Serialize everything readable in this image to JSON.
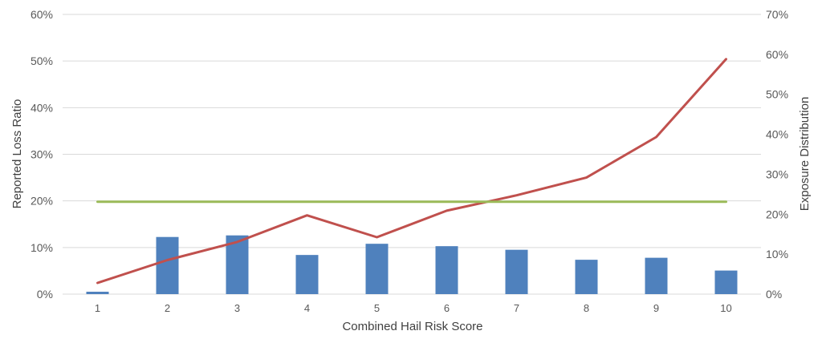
{
  "chart_data": {
    "type": "bar",
    "categories": [
      "1",
      "2",
      "3",
      "4",
      "5",
      "6",
      "7",
      "8",
      "9",
      "10"
    ],
    "xlabel": "Combined Hail Risk Score",
    "ylabel": "Reported Loss Ratio",
    "y2label": "Exposure Distribution",
    "ylim": [
      0,
      60
    ],
    "y2lim": [
      0,
      70
    ],
    "yticks": [
      "0%",
      "10%",
      "20%",
      "30%",
      "40%",
      "50%",
      "60%"
    ],
    "y2ticks": [
      "0%",
      "10%",
      "20%",
      "30%",
      "40%",
      "50%",
      "60%",
      "70%"
    ],
    "grid": "horizontal",
    "legend": "none",
    "series": [
      {
        "kind": "bar",
        "axis": "right",
        "color": "#4f81bd",
        "values": [
          0.6,
          14.3,
          14.7,
          9.8,
          12.6,
          12.0,
          11.1,
          8.6,
          9.1,
          5.9
        ]
      },
      {
        "kind": "line",
        "axis": "left",
        "color": "#c0504d",
        "values": [
          2.4,
          7.3,
          11.2,
          16.9,
          12.2,
          17.9,
          21.2,
          25.0,
          33.7,
          50.4
        ]
      },
      {
        "kind": "line",
        "axis": "left",
        "color": "#9bbb59",
        "values": [
          19.8,
          19.8,
          19.8,
          19.8,
          19.8,
          19.8,
          19.8,
          19.8,
          19.8,
          19.8
        ]
      }
    ]
  }
}
